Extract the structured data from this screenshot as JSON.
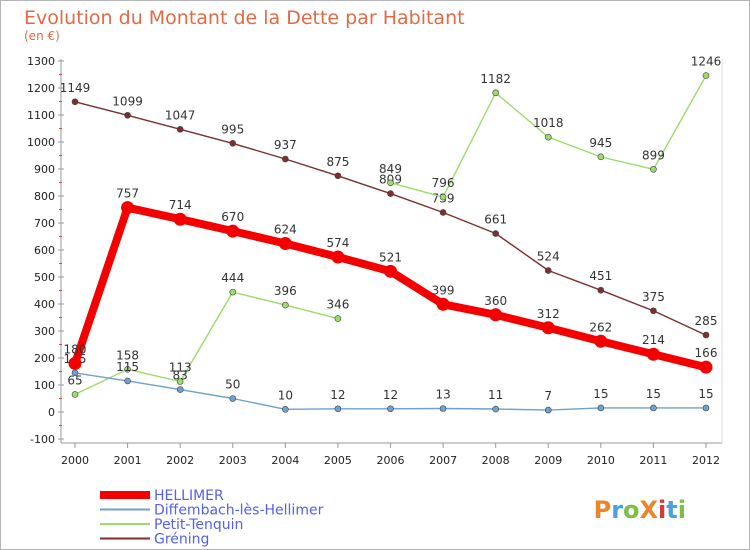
{
  "chart_data": {
    "type": "line",
    "title": "Evolution du Montant de la Dette par Habitant",
    "unit_label": "(en €)",
    "xlabel": "",
    "ylabel": "",
    "ylim": [
      -100,
      1300
    ],
    "y_ticks": [
      "-100",
      "0",
      "100",
      "200",
      "300",
      "400",
      "500",
      "600",
      "700",
      "800",
      "900",
      "1000",
      "1100",
      "1200",
      "1300"
    ],
    "categories": [
      "2000",
      "2001",
      "2002",
      "2003",
      "2004",
      "2005",
      "2006",
      "2007",
      "2008",
      "2009",
      "2010",
      "2011",
      "2012"
    ],
    "series": [
      {
        "name": "HELLIMER",
        "color": "#f50000",
        "emphasis": "thick",
        "values": [
          180,
          757,
          714,
          670,
          624,
          574,
          521,
          399,
          360,
          312,
          262,
          214,
          166
        ],
        "labels": [
          "180",
          "757",
          "714",
          "670",
          "624",
          "574",
          "521",
          "399",
          "360",
          "312",
          "262",
          "214",
          "166"
        ]
      },
      {
        "name": "Diffembach-lès-Hellimer",
        "color": "#6fa0cf",
        "emphasis": "normal",
        "values": [
          145,
          115,
          83,
          50,
          10,
          12,
          12,
          13,
          11,
          7,
          15,
          15,
          15
        ],
        "labels": [
          "145",
          "115",
          "83",
          "50",
          "10",
          "12",
          "12",
          "13",
          "11",
          "7",
          "15",
          "15",
          "15"
        ]
      },
      {
        "name": "Petit-Tenquin",
        "color": "#9bdc6b",
        "emphasis": "normal",
        "gap_after_index": 5,
        "values": [
          65,
          158,
          113,
          444,
          396,
          346,
          849,
          796,
          1182,
          1018,
          945,
          899,
          1246
        ],
        "labels": [
          "65",
          "158",
          "113",
          "444",
          "396",
          "346",
          "849",
          "796",
          "1182",
          "1018",
          "945",
          "899",
          "1246"
        ]
      },
      {
        "name": "Gréning",
        "color": "#7b2f2f",
        "emphasis": "normal",
        "values": [
          1149,
          1099,
          1047,
          995,
          937,
          875,
          809,
          739,
          661,
          524,
          451,
          375,
          285
        ],
        "labels": [
          "1149",
          "1099",
          "1047",
          "995",
          "937",
          "875",
          "809",
          "739",
          "661",
          "524",
          "451",
          "375",
          "285"
        ]
      }
    ],
    "legend": [
      "HELLIMER",
      "Diffembach-lès-Hellimer",
      "Petit-Tenquin",
      "Gréning"
    ],
    "legend_placement": "bottom-left",
    "grid": false
  },
  "branding": {
    "text": "ProXiti",
    "colors": [
      "#e8862a",
      "#4aa2dc",
      "#79c043",
      "#e8862a",
      "#d83a3a",
      "#4aa2dc",
      "#79c043"
    ]
  }
}
